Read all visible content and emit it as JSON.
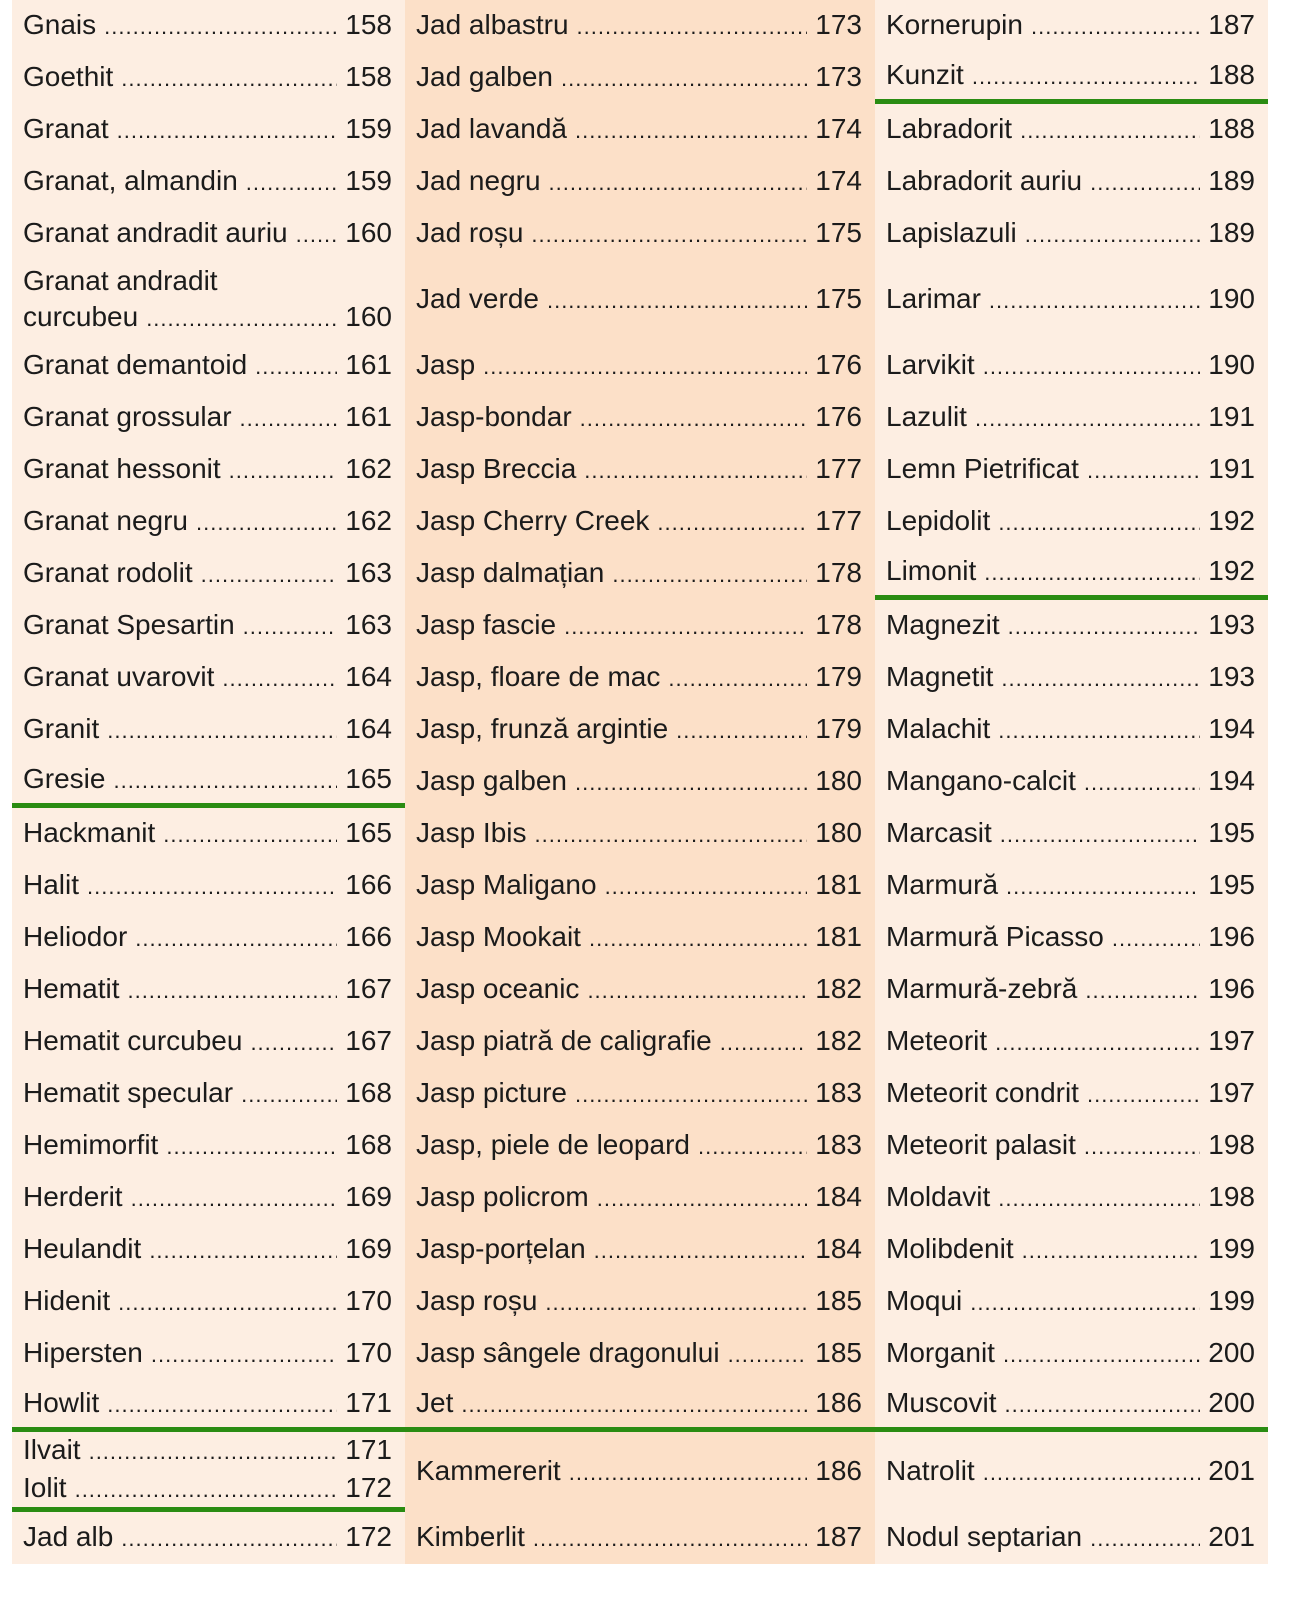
{
  "colors": {
    "column_light": "#fdeee2",
    "column_dark": "#fce0c8",
    "section_rule": "#2a8c12"
  },
  "rows": [
    {
      "cells": [
        [
          {
            "name": "Gnais",
            "page": "158"
          }
        ],
        [
          {
            "name": "Jad albastru",
            "page": "173"
          }
        ],
        [
          {
            "name": "Kornerupin",
            "page": "187"
          }
        ]
      ]
    },
    {
      "cells": [
        [
          {
            "name": "Goethit",
            "page": "158"
          }
        ],
        [
          {
            "name": "Jad galben",
            "page": "173"
          }
        ],
        [
          {
            "name": "Kunzit",
            "page": "188",
            "section_end": true
          }
        ]
      ]
    },
    {
      "cells": [
        [
          {
            "name": "Granat",
            "page": "159"
          }
        ],
        [
          {
            "name": "Jad lavandă",
            "page": "174"
          }
        ],
        [
          {
            "name": "Labradorit",
            "page": "188"
          }
        ]
      ]
    },
    {
      "cells": [
        [
          {
            "name": "Granat, almandin",
            "page": "159"
          }
        ],
        [
          {
            "name": "Jad negru",
            "page": "174"
          }
        ],
        [
          {
            "name": "Labradorit auriu",
            "page": "189"
          }
        ]
      ]
    },
    {
      "cells": [
        [
          {
            "name": "Granat andradit auriu",
            "page": "160"
          }
        ],
        [
          {
            "name": "Jad roșu",
            "page": "175"
          }
        ],
        [
          {
            "name": "Lapislazuli",
            "page": "189"
          }
        ]
      ]
    },
    {
      "cells": [
        [
          {
            "name_lines": [
              "Granat andradit",
              "curcubeu"
            ],
            "page": "160"
          }
        ],
        [
          {
            "name": "Jad verde",
            "page": "175"
          }
        ],
        [
          {
            "name": "Larimar",
            "page": "190"
          }
        ]
      ]
    },
    {
      "cells": [
        [
          {
            "name": "Granat demantoid",
            "page": "161"
          }
        ],
        [
          {
            "name": "Jasp",
            "page": "176"
          }
        ],
        [
          {
            "name": "Larvikit",
            "page": "190"
          }
        ]
      ]
    },
    {
      "cells": [
        [
          {
            "name": "Granat grossular",
            "page": "161"
          }
        ],
        [
          {
            "name": "Jasp-bondar",
            "page": "176"
          }
        ],
        [
          {
            "name": "Lazulit",
            "page": "191"
          }
        ]
      ]
    },
    {
      "cells": [
        [
          {
            "name": "Granat hessonit",
            "page": "162"
          }
        ],
        [
          {
            "name": "Jasp Breccia",
            "page": "177"
          }
        ],
        [
          {
            "name": "Lemn Pietrificat",
            "page": "191"
          }
        ]
      ]
    },
    {
      "cells": [
        [
          {
            "name": "Granat negru",
            "page": "162"
          }
        ],
        [
          {
            "name": "Jasp Cherry Creek",
            "page": "177"
          }
        ],
        [
          {
            "name": "Lepidolit",
            "page": "192"
          }
        ]
      ]
    },
    {
      "cells": [
        [
          {
            "name": "Granat rodolit",
            "page": "163"
          }
        ],
        [
          {
            "name": "Jasp dalmațian",
            "page": "178"
          }
        ],
        [
          {
            "name": "Limonit",
            "page": "192",
            "section_end": true
          }
        ]
      ]
    },
    {
      "cells": [
        [
          {
            "name": "Granat Spesartin",
            "page": "163"
          }
        ],
        [
          {
            "name": "Jasp fascie",
            "page": "178"
          }
        ],
        [
          {
            "name": "Magnezit",
            "page": "193"
          }
        ]
      ]
    },
    {
      "cells": [
        [
          {
            "name": "Granat uvarovit",
            "page": "164"
          }
        ],
        [
          {
            "name": "Jasp, floare de mac",
            "page": "179"
          }
        ],
        [
          {
            "name": "Magnetit",
            "page": "193"
          }
        ]
      ]
    },
    {
      "cells": [
        [
          {
            "name": "Granit",
            "page": "164"
          }
        ],
        [
          {
            "name": "Jasp, frunză argintie",
            "page": "179"
          }
        ],
        [
          {
            "name": "Malachit",
            "page": "194"
          }
        ]
      ]
    },
    {
      "cells": [
        [
          {
            "name": "Gresie",
            "page": "165",
            "section_end": true
          }
        ],
        [
          {
            "name": "Jasp galben",
            "page": "180"
          }
        ],
        [
          {
            "name": "Mangano-calcit",
            "page": "194"
          }
        ]
      ]
    },
    {
      "cells": [
        [
          {
            "name": "Hackmanit",
            "page": "165"
          }
        ],
        [
          {
            "name": "Jasp Ibis",
            "page": "180"
          }
        ],
        [
          {
            "name": "Marcasit",
            "page": "195"
          }
        ]
      ]
    },
    {
      "cells": [
        [
          {
            "name": "Halit",
            "page": "166"
          }
        ],
        [
          {
            "name": "Jasp Maligano",
            "page": "181"
          }
        ],
        [
          {
            "name": "Marmură",
            "page": "195"
          }
        ]
      ]
    },
    {
      "cells": [
        [
          {
            "name": "Heliodor",
            "page": "166"
          }
        ],
        [
          {
            "name": "Jasp Mookait",
            "page": "181"
          }
        ],
        [
          {
            "name": "Marmură Picasso",
            "page": "196"
          }
        ]
      ]
    },
    {
      "cells": [
        [
          {
            "name": "Hematit",
            "page": "167"
          }
        ],
        [
          {
            "name": "Jasp oceanic",
            "page": "182"
          }
        ],
        [
          {
            "name": "Marmură-zebră",
            "page": "196"
          }
        ]
      ]
    },
    {
      "cells": [
        [
          {
            "name": "Hematit curcubeu",
            "page": "167"
          }
        ],
        [
          {
            "name": "Jasp piatră de caligrafie",
            "page": "182"
          }
        ],
        [
          {
            "name": "Meteorit",
            "page": "197"
          }
        ]
      ]
    },
    {
      "cells": [
        [
          {
            "name": "Hematit specular",
            "page": "168"
          }
        ],
        [
          {
            "name": "Jasp picture",
            "page": "183"
          }
        ],
        [
          {
            "name": "Meteorit condrit",
            "page": "197"
          }
        ]
      ]
    },
    {
      "cells": [
        [
          {
            "name": "Hemimorfit",
            "page": "168"
          }
        ],
        [
          {
            "name": "Jasp, piele de leopard",
            "page": "183"
          }
        ],
        [
          {
            "name": "Meteorit palasit",
            "page": "198"
          }
        ]
      ]
    },
    {
      "cells": [
        [
          {
            "name": "Herderit",
            "page": "169"
          }
        ],
        [
          {
            "name": "Jasp policrom",
            "page": "184"
          }
        ],
        [
          {
            "name": "Moldavit",
            "page": "198"
          }
        ]
      ]
    },
    {
      "cells": [
        [
          {
            "name": "Heulandit",
            "page": "169"
          }
        ],
        [
          {
            "name": "Jasp-porțelan",
            "page": "184"
          }
        ],
        [
          {
            "name": "Molibdenit",
            "page": "199"
          }
        ]
      ]
    },
    {
      "cells": [
        [
          {
            "name": "Hidenit",
            "page": "170"
          }
        ],
        [
          {
            "name": "Jasp roșu",
            "page": "185"
          }
        ],
        [
          {
            "name": "Moqui",
            "page": "199"
          }
        ]
      ]
    },
    {
      "cells": [
        [
          {
            "name": "Hipersten",
            "page": "170"
          }
        ],
        [
          {
            "name": "Jasp sângele dragonului",
            "page": "185"
          }
        ],
        [
          {
            "name": "Morganit",
            "page": "200"
          }
        ]
      ]
    },
    {
      "cells": [
        [
          {
            "name": "Howlit",
            "page": "171",
            "section_end": true
          }
        ],
        [
          {
            "name": "Jet",
            "page": "186",
            "section_end": true
          }
        ],
        [
          {
            "name": "Muscovit",
            "page": "200",
            "section_end": true
          }
        ]
      ]
    },
    {
      "cells": [
        [
          {
            "name": "Ilvait",
            "page": "171"
          },
          {
            "name": "Iolit",
            "page": "172",
            "section_end": true
          }
        ],
        [
          {
            "name": "Kammererit",
            "page": "186"
          }
        ],
        [
          {
            "name": "Natrolit",
            "page": "201"
          }
        ]
      ]
    },
    {
      "cells": [
        [
          {
            "name": "Jad alb",
            "page": "172"
          }
        ],
        [
          {
            "name": "Kimberlit",
            "page": "187"
          }
        ],
        [
          {
            "name": "Nodul septarian",
            "page": "201"
          }
        ]
      ]
    }
  ]
}
